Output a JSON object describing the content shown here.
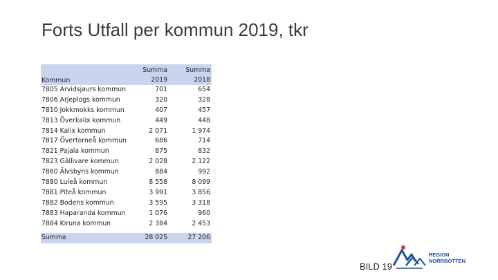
{
  "slide": {
    "title": "Forts Utfall per kommun 2019, tkr",
    "footer": "BILD 19"
  },
  "table": {
    "header": {
      "label": "Kommun",
      "col2019_line1": "Summa",
      "col2019_line2": "2019",
      "col2018_line1": "Summa",
      "col2018_line2": "2018"
    },
    "rows": [
      {
        "kommun": "7805 Arvidsjaurs kommun",
        "v2019": "701",
        "v2018": "654"
      },
      {
        "kommun": "7806 Arjeplogs kommun",
        "v2019": "320",
        "v2018": "328"
      },
      {
        "kommun": "7810 Jokkmokks kommun",
        "v2019": "407",
        "v2018": "457"
      },
      {
        "kommun": "7813 Överkalix kommun",
        "v2019": "449",
        "v2018": "448"
      },
      {
        "kommun": "7814 Kalix kommun",
        "v2019": "2 071",
        "v2018": "1 974"
      },
      {
        "kommun": "7817 Övertorneå kommun",
        "v2019": "686",
        "v2018": "714"
      },
      {
        "kommun": "7821 Pajala kommun",
        "v2019": "875",
        "v2018": "832"
      },
      {
        "kommun": "7823 Gällivare kommun",
        "v2019": "2 028",
        "v2018": "2 122"
      },
      {
        "kommun": "7860 Älvsbyns kommun",
        "v2019": "884",
        "v2018": "992"
      },
      {
        "kommun": "7880 Luleå kommun",
        "v2019": "8 558",
        "v2018": "8 099"
      },
      {
        "kommun": "7881 Piteå kommun",
        "v2019": "3 991",
        "v2018": "3 856"
      },
      {
        "kommun": "7882 Bodens kommun",
        "v2019": "3 595",
        "v2018": "3 318"
      },
      {
        "kommun": "7883 Haparanda kommun",
        "v2019": "1 076",
        "v2018": "960"
      },
      {
        "kommun": "7884 Kiruna kommun",
        "v2019": "2 384",
        "v2018": "2 453"
      }
    ],
    "total": {
      "label": "Summa",
      "v2019": "28 025",
      "v2018": "27 206"
    }
  },
  "logo": {
    "line1": "REGION",
    "line2": "NORRBOTTEN",
    "colors": {
      "blue": "#1a4fa0",
      "red": "#e2312b"
    }
  }
}
